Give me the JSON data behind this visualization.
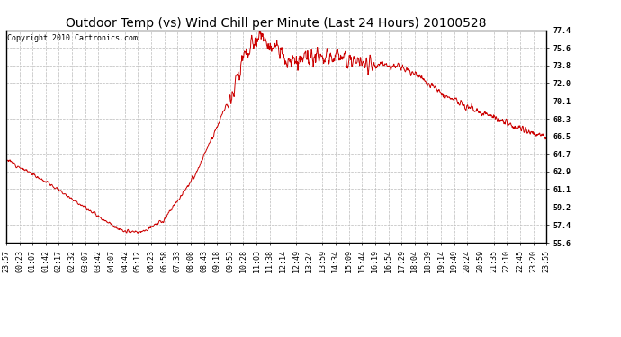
{
  "title": "Outdoor Temp (vs) Wind Chill per Minute (Last 24 Hours) 20100528",
  "copyright": "Copyright 2010 Cartronics.com",
  "line_color": "#cc0000",
  "background_color": "#ffffff",
  "plot_bg_color": "#ffffff",
  "ymin": 55.6,
  "ymax": 77.4,
  "yticks": [
    77.4,
    75.6,
    73.8,
    72.0,
    70.1,
    68.3,
    66.5,
    64.7,
    62.9,
    61.1,
    59.2,
    57.4,
    55.6
  ],
  "xtick_labels": [
    "23:57",
    "00:23",
    "01:07",
    "01:42",
    "02:17",
    "02:32",
    "03:07",
    "03:42",
    "04:07",
    "04:42",
    "05:12",
    "06:23",
    "06:58",
    "07:33",
    "08:08",
    "08:43",
    "09:18",
    "09:53",
    "10:28",
    "11:03",
    "11:38",
    "12:14",
    "12:49",
    "13:24",
    "13:59",
    "14:34",
    "15:09",
    "15:44",
    "16:19",
    "16:54",
    "17:29",
    "18:04",
    "18:39",
    "19:14",
    "19:49",
    "20:24",
    "20:59",
    "21:35",
    "22:10",
    "22:45",
    "23:20",
    "23:55"
  ],
  "title_fontsize": 10,
  "copyright_fontsize": 6,
  "tick_fontsize": 6,
  "grid_color": "#bbbbbb",
  "grid_linestyle": "--",
  "grid_linewidth": 0.5,
  "outer_border_color": "#000000",
  "ctrl_t": [
    0.0,
    0.03,
    0.07,
    0.12,
    0.18,
    0.213,
    0.245,
    0.29,
    0.35,
    0.41,
    0.44,
    0.47,
    0.5,
    0.54,
    0.58,
    0.63,
    0.68,
    0.72,
    0.76,
    0.82,
    0.88,
    0.93,
    0.97,
    1.0
  ],
  "ctrl_v": [
    64.2,
    63.2,
    62.0,
    60.2,
    58.0,
    56.8,
    56.6,
    57.8,
    62.5,
    70.0,
    74.5,
    76.8,
    75.2,
    74.0,
    74.6,
    74.5,
    73.9,
    73.8,
    72.8,
    70.5,
    69.0,
    67.8,
    67.0,
    66.5
  ],
  "noise_seed": 12
}
